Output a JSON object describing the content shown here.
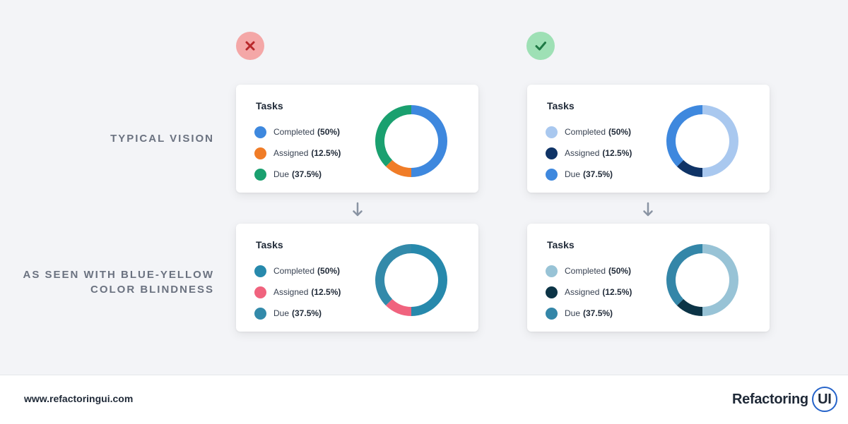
{
  "row_labels": {
    "typical": [
      "TYPICAL VISION"
    ],
    "colorblind": [
      "AS SEEN WITH BLUE-YELLOW",
      "COLOR BLINDNESS"
    ]
  },
  "badges": {
    "bad": {
      "icon": "x-icon",
      "bg": "#f4a7a7",
      "fg": "#b8282b"
    },
    "good": {
      "icon": "check-icon",
      "bg": "#9ee0b5",
      "fg": "#1f7a45"
    }
  },
  "chart_data": [
    {
      "type": "pie",
      "variant": "donut",
      "title": "Tasks",
      "panel": "bad-typical",
      "categories": [
        "Completed",
        "Assigned",
        "Due"
      ],
      "values": [
        50,
        12.5,
        37.5
      ],
      "labels": [
        "(50%)",
        "(12.5%)",
        "(37.5%)"
      ],
      "colors": [
        "#3e88de",
        "#f07c27",
        "#1aa06f"
      ],
      "legend_position": "left"
    },
    {
      "type": "pie",
      "variant": "donut",
      "title": "Tasks",
      "panel": "good-typical",
      "categories": [
        "Completed",
        "Assigned",
        "Due"
      ],
      "values": [
        50,
        12.5,
        37.5
      ],
      "labels": [
        "(50%)",
        "(12.5%)",
        "(37.5%)"
      ],
      "colors": [
        "#a9c8ef",
        "#0f3366",
        "#3e88de"
      ],
      "legend_position": "left"
    },
    {
      "type": "pie",
      "variant": "donut",
      "title": "Tasks",
      "panel": "bad-colorblind",
      "categories": [
        "Completed",
        "Assigned",
        "Due"
      ],
      "values": [
        50,
        12.5,
        37.5
      ],
      "labels": [
        "(50%)",
        "(12.5%)",
        "(37.5%)"
      ],
      "colors": [
        "#2789ac",
        "#f0637e",
        "#338aaa"
      ],
      "legend_position": "left"
    },
    {
      "type": "pie",
      "variant": "donut",
      "title": "Tasks",
      "panel": "good-colorblind",
      "categories": [
        "Completed",
        "Assigned",
        "Due"
      ],
      "values": [
        50,
        12.5,
        37.5
      ],
      "labels": [
        "(50%)",
        "(12.5%)",
        "(37.5%)"
      ],
      "colors": [
        "#98c3d6",
        "#0c3446",
        "#3486a8"
      ],
      "legend_position": "left"
    }
  ],
  "footer": {
    "website": "www.refactoringui.com",
    "logo_text": "Refactoring",
    "logo_badge": "UI"
  }
}
